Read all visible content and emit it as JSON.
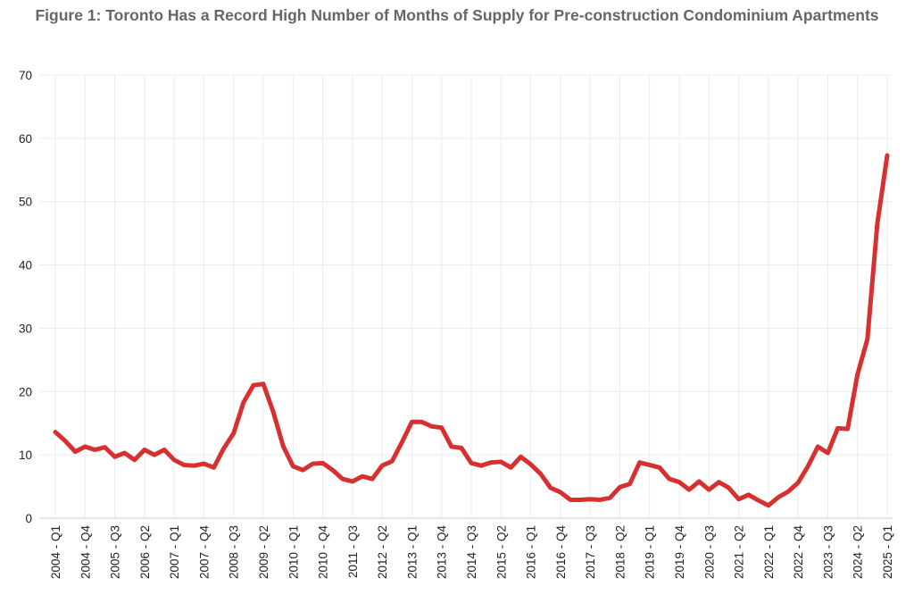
{
  "chart_data": {
    "type": "line",
    "title": "Figure 1: Toronto Has a Record High Number of Months of Supply for Pre-construction Condominium Apartments",
    "xlabel": "",
    "ylabel": "",
    "ylim": [
      0,
      70
    ],
    "yticks": [
      0,
      10,
      20,
      30,
      40,
      50,
      60,
      70
    ],
    "grid": true,
    "start_year": 2004,
    "label_every": 3,
    "series": [
      {
        "name": "Months of Supply",
        "color": "#d63031",
        "values": [
          13.6,
          12.2,
          10.5,
          11.3,
          10.8,
          11.2,
          9.7,
          10.3,
          9.2,
          10.8,
          10.0,
          10.8,
          9.2,
          8.4,
          8.3,
          8.6,
          8.0,
          11.0,
          13.4,
          18.3,
          21.0,
          21.2,
          16.8,
          11.4,
          8.2,
          7.6,
          8.6,
          8.7,
          7.6,
          6.2,
          5.8,
          6.6,
          6.2,
          8.3,
          9.0,
          12.0,
          15.2,
          15.2,
          14.5,
          14.3,
          11.3,
          11.1,
          8.7,
          8.3,
          8.8,
          8.9,
          8.0,
          9.7,
          8.5,
          7.0,
          4.8,
          4.1,
          2.9,
          2.9,
          3.0,
          2.9,
          3.2,
          4.9,
          5.4,
          8.8,
          8.4,
          8.0,
          6.2,
          5.7,
          4.5,
          5.8,
          4.5,
          5.7,
          4.8,
          3.0,
          3.7,
          2.8,
          2.0,
          3.3,
          4.2,
          5.6,
          8.2,
          11.3,
          10.3,
          14.2,
          14.1,
          22.7,
          28.3,
          46.5,
          57.3
        ]
      }
    ]
  }
}
